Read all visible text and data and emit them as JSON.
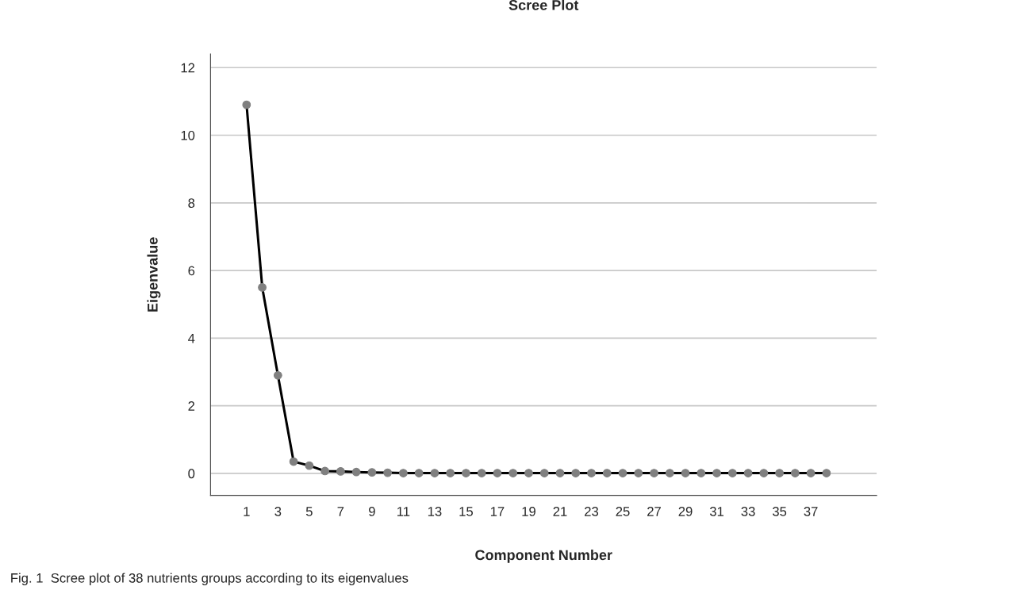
{
  "chart_data": {
    "type": "line",
    "title": "Scree Plot",
    "xlabel": "Component Number",
    "ylabel": "Eigenvalue",
    "categories": [
      "1",
      null,
      "3",
      null,
      "5",
      null,
      "7",
      null,
      "9",
      null,
      "11",
      null,
      "13",
      null,
      "15",
      null,
      "17",
      null,
      "19",
      null,
      "21",
      null,
      "23",
      null,
      "25",
      null,
      "27",
      null,
      "29",
      null,
      "31",
      null,
      "33",
      null,
      "35",
      null,
      "37",
      null
    ],
    "series": [
      {
        "color": "#000000",
        "values": [
          10.9,
          5.5,
          2.9,
          0.35,
          0.23,
          0.07,
          0.06,
          0.04,
          0.03,
          0.02,
          0.01,
          0.01,
          0.01,
          0.01,
          0.01,
          0.01,
          0.01,
          0.01,
          0.01,
          0.01,
          0.01,
          0.01,
          0.01,
          0.01,
          0.01,
          0.01,
          0.01,
          0.01,
          0.01,
          0.01,
          0.01,
          0.01,
          0.01,
          0.01,
          0.01,
          0.01,
          0.01,
          0.01
        ]
      }
    ],
    "ylim": [
      -0.65,
      12.4
    ],
    "yticks": [
      0,
      2,
      4,
      6,
      8,
      10,
      12
    ],
    "grid": "y",
    "marker": "circle",
    "line_style": "solid",
    "annotations": [
      "Fig. 1  Scree plot of 38 nutrients groups according to its eigenvalues"
    ]
  }
}
